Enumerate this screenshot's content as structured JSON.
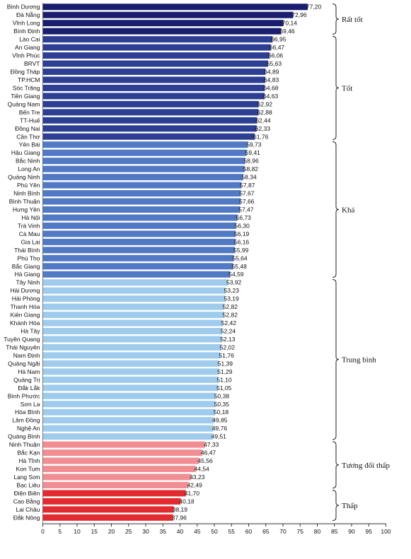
{
  "chart_data": {
    "type": "bar",
    "orientation": "horizontal",
    "title": "",
    "xlabel": "",
    "ylabel": "",
    "xlim": [
      0,
      100
    ],
    "x_ticks": [
      0,
      5,
      10,
      15,
      20,
      25,
      30,
      35,
      40,
      45,
      50,
      55,
      60,
      65,
      70,
      75,
      80,
      85,
      90,
      95,
      100
    ],
    "grid": false,
    "categories": [
      "Bình Dương",
      "Đà Nẵng",
      "Vĩnh Long",
      "Bình Định",
      "Lào Cai",
      "An Giang",
      "Vĩnh Phúc",
      "BRVT",
      "Đồng Tháp",
      "TP.HCM",
      "Sóc Trăng",
      "Tiền Giang",
      "Quảng Nam",
      "Bến Tre",
      "TT-Huế",
      "Đồng Nai",
      "Cần Thơ",
      "Yên Bái",
      "Hậu Giang",
      "Bắc Ninh",
      "Long An",
      "Quảng Ninh",
      "Phú Yên",
      "Ninh Bình",
      "Bình Thuận",
      "Hưng Yên",
      "Hà Nội",
      "Trà Vinh",
      "Cà Mau",
      "Gia Lai",
      "Thái Bình",
      "Phú Thọ",
      "Bắc Giang",
      "Hà Giang",
      "Tây Ninh",
      "Hải Dương",
      "Hải Phòng",
      "Thanh Hóa",
      "Kiên Giang",
      "Khánh Hòa",
      "Hà Tây",
      "Tuyên Quang",
      "Thái Nguyên",
      "Nam Định",
      "Quảng Ngãi",
      "Hà Nam",
      "Quảng Trị",
      "Đắk Lắk",
      "Bình Phước",
      "Sơn La",
      "Hòa Bình",
      "Lâm Đồng",
      "Nghệ An",
      "Quảng Bình",
      "Ninh Thuận",
      "Bắc Kạn",
      "Hà Tĩnh",
      "Kon Tum",
      "Lạng Sơn",
      "Bạc Liêu",
      "Điện Biên",
      "Cao Bằng",
      "Lai Châu",
      "Đắk Nông"
    ],
    "values": [
      77.2,
      72.96,
      70.14,
      69.46,
      66.95,
      66.47,
      66.06,
      65.63,
      64.89,
      64.83,
      64.68,
      64.63,
      62.92,
      62.88,
      62.44,
      62.33,
      61.76,
      59.73,
      59.41,
      58.96,
      58.82,
      58.34,
      57.87,
      57.67,
      57.66,
      57.47,
      56.73,
      56.3,
      56.19,
      56.16,
      55.99,
      55.64,
      55.48,
      54.59,
      53.92,
      53.23,
      53.19,
      52.82,
      52.82,
      52.42,
      52.24,
      52.13,
      52.02,
      51.76,
      51.39,
      51.29,
      51.1,
      51.05,
      50.38,
      50.35,
      50.18,
      49.85,
      49.76,
      49.51,
      47.33,
      46.47,
      45.56,
      44.54,
      43.23,
      42.49,
      41.7,
      40.18,
      38.19,
      37.96
    ],
    "value_labels": [
      "77,20",
      "72,96",
      "70,14",
      "69,46",
      "66,95",
      "66,47",
      "66,06",
      "65,63",
      "64,89",
      "64,83",
      "64,68",
      "64,63",
      "62,92",
      "62,88",
      "62,44",
      "62,33",
      "61,76",
      "59,73",
      "59,41",
      "58,96",
      "58,82",
      "58,34",
      "57,87",
      "57,67",
      "57,66",
      "57,47",
      "56,73",
      "56,30",
      "56,19",
      "56,16",
      "55,99",
      "55,64",
      "55,48",
      "54,59",
      "53,92",
      "53,23",
      "53,19",
      "52,82",
      "52,82",
      "52,42",
      "52,24",
      "52,13",
      "52,02",
      "51,76",
      "51,39",
      "51,29",
      "51,10",
      "51,05",
      "50,38",
      "50,35",
      "50,18",
      "49,85",
      "49,76",
      "49,51",
      "47,33",
      "46,47",
      "45,56",
      "44,54",
      "43,23",
      "42,49",
      "41,70",
      "40,18",
      "38,19",
      "37,96"
    ],
    "groups": [
      {
        "label": "Rất tốt",
        "start": 0,
        "end": 3,
        "color": "#1a1e6e"
      },
      {
        "label": "Tốt",
        "start": 4,
        "end": 16,
        "color": "#2d3e93"
      },
      {
        "label": "Khá",
        "start": 17,
        "end": 33,
        "color": "#5279c4"
      },
      {
        "label": "Trung bình",
        "start": 34,
        "end": 53,
        "color": "#9fcbec"
      },
      {
        "label": "Tương đối thấp",
        "start": 54,
        "end": 59,
        "color": "#f08e94"
      },
      {
        "label": "Thấp",
        "start": 60,
        "end": 63,
        "color": "#e22b30"
      }
    ]
  }
}
